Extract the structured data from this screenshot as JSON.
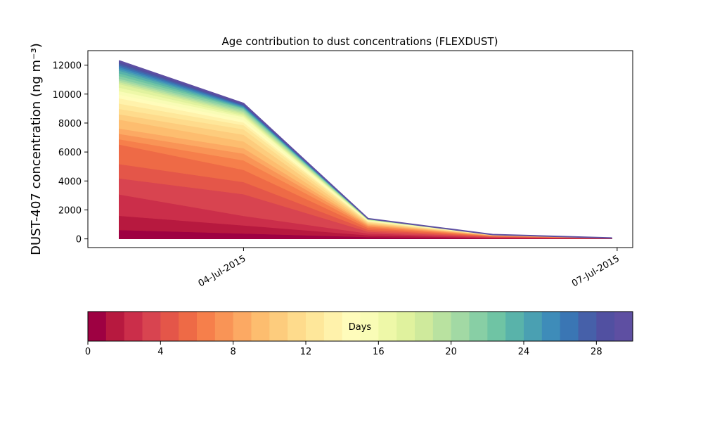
{
  "chart_data": {
    "type": "area",
    "title": "Age contribution to dust concentrations (FLEXDUST)",
    "ylabel": "DUST-407 concentration (ng m⁻³)",
    "xlabel": "",
    "x_tick_labels": [
      "04-Jul-2015",
      "07-Jul-2015"
    ],
    "x_tick_dates": [
      "2015-07-04",
      "2015-07-07"
    ],
    "x_dates": [
      "2015-07-03 00:00",
      "2015-07-04 00:00",
      "2015-07-05 00:00",
      "2015-07-06 00:00",
      "2015-07-06 23:00"
    ],
    "xlim": [
      "2015-07-02 18:00",
      "2015-07-07 03:00"
    ],
    "ylim": [
      -600,
      13000
    ],
    "y_ticks": [
      0,
      2000,
      4000,
      6000,
      8000,
      10000,
      12000
    ],
    "grid": false,
    "stack_totals": [
      12300,
      9350,
      1400,
      300,
      60
    ],
    "series_count": 30,
    "cumulative_fraction_by_age": [
      [
        0,
        0.05,
        0.13,
        0.25,
        0.34,
        0.42,
        0.53,
        0.56,
        0.59,
        0.62,
        0.67,
        0.7,
        0.73,
        0.76,
        0.79,
        0.81,
        0.83,
        0.85,
        0.87,
        0.88,
        0.89,
        0.9,
        0.915,
        0.93,
        0.945,
        0.955,
        0.965,
        0.975,
        0.985,
        0.993,
        1.0
      ],
      [
        0,
        0.04,
        0.1,
        0.17,
        0.33,
        0.42,
        0.51,
        0.58,
        0.63,
        0.67,
        0.72,
        0.77,
        0.81,
        0.84,
        0.86,
        0.88,
        0.9,
        0.91,
        0.92,
        0.93,
        0.94,
        0.95,
        0.96,
        0.965,
        0.97,
        0.975,
        0.98,
        0.985,
        0.99,
        0.995,
        1.0
      ],
      [
        0,
        0.09,
        0.18,
        0.27,
        0.36,
        0.45,
        0.54,
        0.61,
        0.66,
        0.71,
        0.75,
        0.79,
        0.83,
        0.86,
        0.88,
        0.9,
        0.92,
        0.93,
        0.94,
        0.95,
        0.96,
        0.967,
        0.973,
        0.978,
        0.983,
        0.987,
        0.99,
        0.993,
        0.996,
        0.998,
        1.0
      ],
      [
        0,
        0.1,
        0.2,
        0.32,
        0.43,
        0.53,
        0.62,
        0.69,
        0.75,
        0.8,
        0.84,
        0.87,
        0.9,
        0.92,
        0.94,
        0.95,
        0.96,
        0.97,
        0.975,
        0.98,
        0.985,
        0.988,
        0.99,
        0.992,
        0.994,
        0.996,
        0.997,
        0.998,
        0.999,
        0.9995,
        1.0
      ],
      [
        0,
        0.12,
        0.24,
        0.36,
        0.47,
        0.57,
        0.66,
        0.73,
        0.79,
        0.84,
        0.88,
        0.91,
        0.93,
        0.95,
        0.96,
        0.97,
        0.98,
        0.985,
        0.99,
        0.992,
        0.994,
        0.995,
        0.996,
        0.997,
        0.998,
        0.9985,
        0.999,
        0.9993,
        0.9996,
        0.9998,
        1.0
      ]
    ],
    "colorbar": {
      "label": "Days",
      "range": [
        0,
        30
      ],
      "tick_values": [
        0,
        4,
        8,
        12,
        16,
        20,
        24,
        28
      ],
      "tick_labels": [
        "0",
        "4",
        "8",
        "12",
        "16",
        "20",
        "24",
        "28"
      ],
      "colormap": "Spectral",
      "colors": [
        "#9e0142",
        "#b7193f",
        "#cb2e4a",
        "#d84450",
        "#e45649",
        "#ee6a46",
        "#f67f4b",
        "#f99456",
        "#fca963",
        "#fdbd6f",
        "#fdcc7d",
        "#fedb8c",
        "#fee79a",
        "#fff2ab",
        "#fffcbb",
        "#f9fcb6",
        "#eef8a8",
        "#e0f29e",
        "#cfea9c",
        "#b9e2a0",
        "#a2d9a4",
        "#88cfa5",
        "#6fc4a4",
        "#59b3aa",
        "#4aa0b2",
        "#3e8cb9",
        "#3a76b4",
        "#4660a9",
        "#5150a1",
        "#5e4fa2"
      ]
    }
  }
}
